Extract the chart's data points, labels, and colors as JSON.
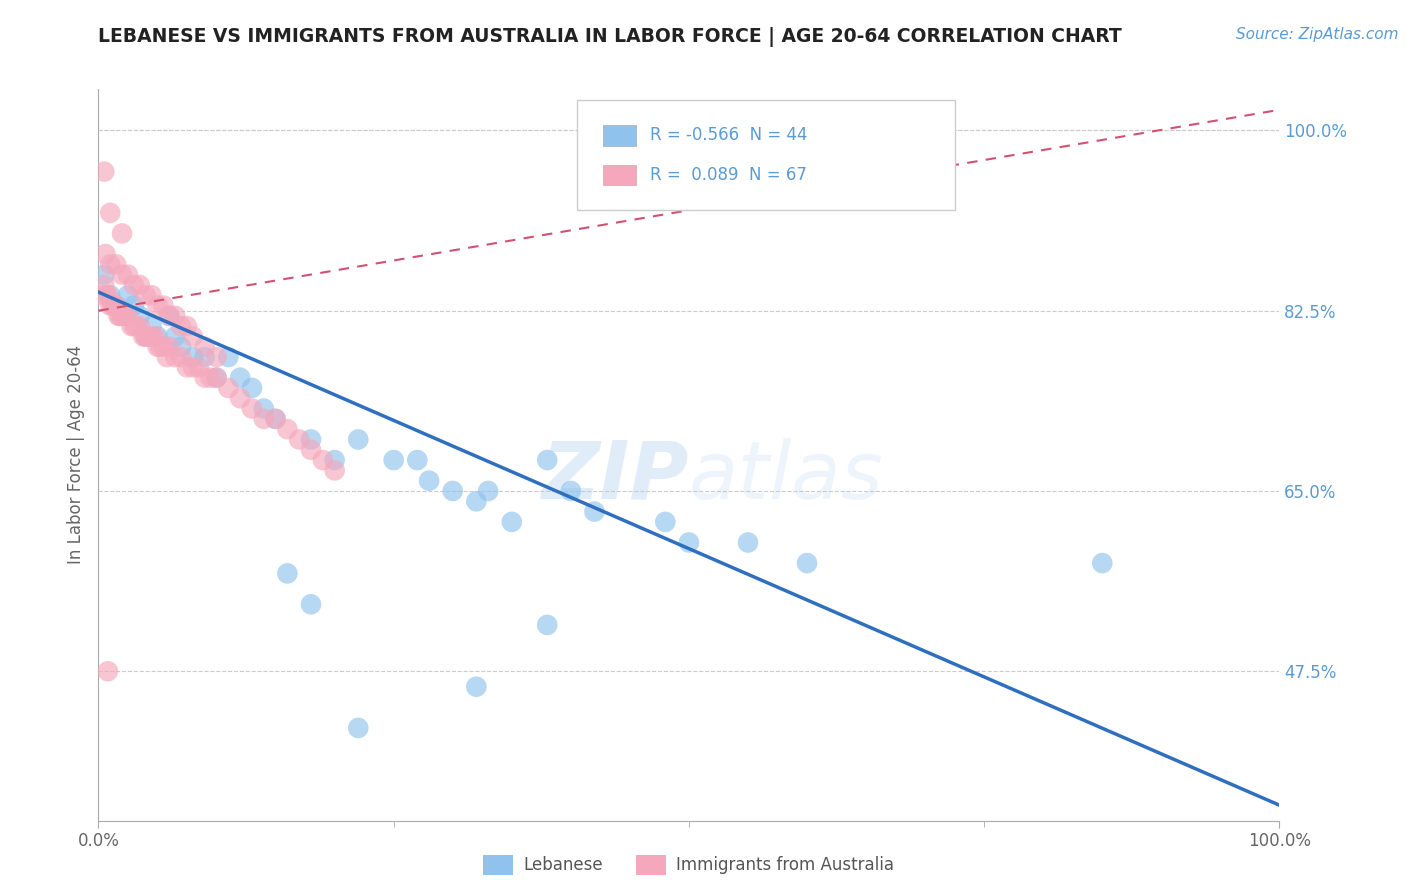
{
  "title": "LEBANESE VS IMMIGRANTS FROM AUSTRALIA IN LABOR FORCE | AGE 20-64 CORRELATION CHART",
  "source": "Source: ZipAtlas.com",
  "ylabel": "In Labor Force | Age 20-64",
  "xlim": [
    0,
    1
  ],
  "ylim": [
    0.33,
    1.04
  ],
  "yticks": [
    0.475,
    0.65,
    0.825,
    1.0
  ],
  "ytick_labels": [
    "47.5%",
    "65.0%",
    "82.5%",
    "100.0%"
  ],
  "legend_R1": "-0.566",
  "legend_N1": "44",
  "legend_R2": "0.089",
  "legend_N2": "67",
  "blue_color": "#8FC3ED",
  "pink_color": "#F5A8BC",
  "trend_blue": "#2F6FBF",
  "trend_pink": "#D45070",
  "watermark_color": "#A8CCEC",
  "title_color": "#222222",
  "source_color": "#5B9BD5",
  "axis_label_color": "#5B9BD5",
  "background_color": "#FFFFFF",
  "blue_x": [
    0.005,
    0.01,
    0.015,
    0.02,
    0.025,
    0.03,
    0.035,
    0.04,
    0.045,
    0.05,
    0.06,
    0.065,
    0.07,
    0.08,
    0.09,
    0.1,
    0.11,
    0.12,
    0.13,
    0.14,
    0.15,
    0.18,
    0.2,
    0.22,
    0.25,
    0.28,
    0.3,
    0.32,
    0.35,
    0.38,
    0.4,
    0.42,
    0.48,
    0.5,
    0.55,
    0.6,
    0.27,
    0.33,
    0.18,
    0.38,
    0.85,
    0.32,
    0.22,
    0.16
  ],
  "blue_y": [
    0.86,
    0.84,
    0.83,
    0.82,
    0.84,
    0.83,
    0.82,
    0.8,
    0.81,
    0.8,
    0.82,
    0.8,
    0.79,
    0.78,
    0.78,
    0.76,
    0.78,
    0.76,
    0.75,
    0.73,
    0.72,
    0.7,
    0.68,
    0.7,
    0.68,
    0.66,
    0.65,
    0.64,
    0.62,
    0.68,
    0.65,
    0.63,
    0.62,
    0.6,
    0.6,
    0.58,
    0.68,
    0.65,
    0.54,
    0.52,
    0.58,
    0.46,
    0.42,
    0.57
  ],
  "pink_x": [
    0.003,
    0.005,
    0.007,
    0.008,
    0.01,
    0.012,
    0.013,
    0.015,
    0.017,
    0.018,
    0.02,
    0.022,
    0.025,
    0.028,
    0.03,
    0.032,
    0.035,
    0.038,
    0.04,
    0.042,
    0.045,
    0.048,
    0.05,
    0.052,
    0.055,
    0.058,
    0.06,
    0.065,
    0.07,
    0.075,
    0.08,
    0.085,
    0.09,
    0.095,
    0.1,
    0.11,
    0.12,
    0.13,
    0.14,
    0.15,
    0.16,
    0.17,
    0.18,
    0.19,
    0.2,
    0.006,
    0.01,
    0.015,
    0.02,
    0.025,
    0.03,
    0.035,
    0.04,
    0.045,
    0.05,
    0.055,
    0.06,
    0.065,
    0.07,
    0.075,
    0.08,
    0.09,
    0.1,
    0.005,
    0.01,
    0.02,
    0.008
  ],
  "pink_y": [
    0.84,
    0.85,
    0.84,
    0.84,
    0.83,
    0.83,
    0.83,
    0.83,
    0.82,
    0.82,
    0.82,
    0.82,
    0.82,
    0.81,
    0.81,
    0.81,
    0.81,
    0.8,
    0.8,
    0.8,
    0.8,
    0.8,
    0.79,
    0.79,
    0.79,
    0.78,
    0.79,
    0.78,
    0.78,
    0.77,
    0.77,
    0.77,
    0.76,
    0.76,
    0.76,
    0.75,
    0.74,
    0.73,
    0.72,
    0.72,
    0.71,
    0.7,
    0.69,
    0.68,
    0.67,
    0.88,
    0.87,
    0.87,
    0.86,
    0.86,
    0.85,
    0.85,
    0.84,
    0.84,
    0.83,
    0.83,
    0.82,
    0.82,
    0.81,
    0.81,
    0.8,
    0.79,
    0.78,
    0.96,
    0.92,
    0.9,
    0.475
  ],
  "blue_trend_x0": 0.0,
  "blue_trend_y0": 0.843,
  "blue_trend_x1": 1.0,
  "blue_trend_y1": 0.345,
  "pink_trend_x0": 0.0,
  "pink_trend_y0": 0.825,
  "pink_trend_x1": 1.0,
  "pink_trend_y1": 1.02
}
